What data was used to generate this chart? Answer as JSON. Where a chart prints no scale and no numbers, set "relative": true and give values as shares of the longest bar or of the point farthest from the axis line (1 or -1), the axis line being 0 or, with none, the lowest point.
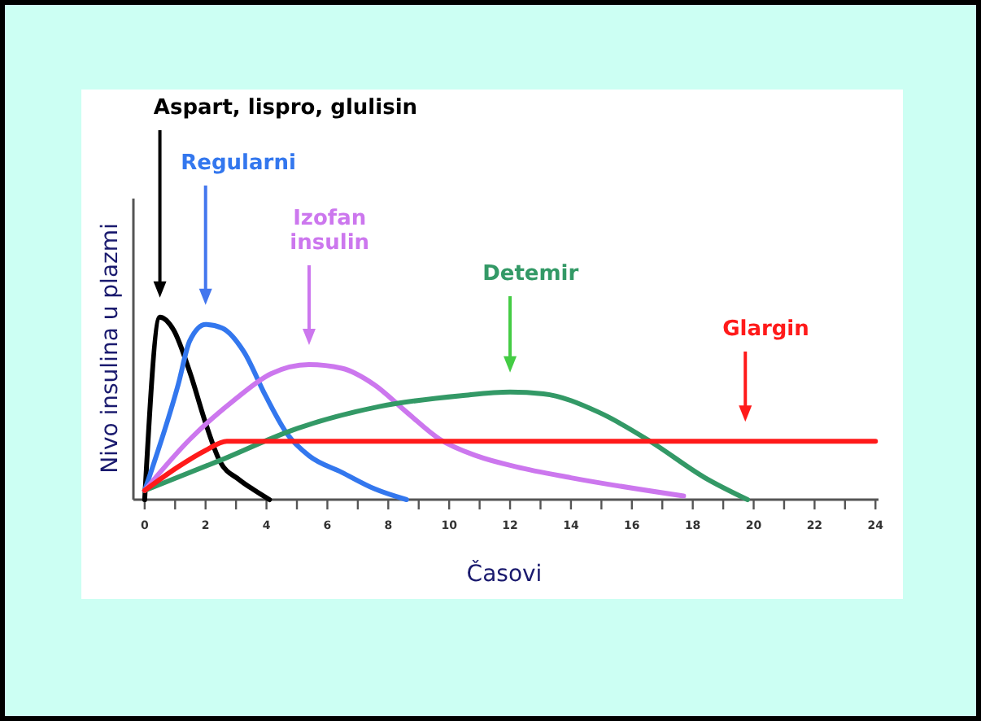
{
  "chart_data": {
    "type": "line",
    "relative": true,
    "xlabel": "Časovi",
    "ylabel": "Nivo insulina u plazmi",
    "xlim": [
      -0.37,
      24.1
    ],
    "xticks": [
      0,
      {
        "value": 1,
        "label": null
      },
      2,
      {
        "value": 3,
        "label": null
      },
      4,
      {
        "value": 5,
        "label": null
      },
      6,
      {
        "value": 7,
        "label": null
      },
      8,
      {
        "value": 9,
        "label": null
      },
      10,
      {
        "value": 11,
        "label": null
      },
      12,
      {
        "value": 13,
        "label": null
      },
      14,
      {
        "value": 15,
        "label": null
      },
      16,
      {
        "value": 17,
        "label": null
      },
      18,
      {
        "value": 19,
        "label": null
      },
      20,
      {
        "value": 21,
        "label": null
      },
      22,
      {
        "value": 23,
        "label": null
      },
      24
    ],
    "series": [
      {
        "name": "Aspart, lispro, glulisin",
        "color": "#000000",
        "x": [
          0,
          0.5,
          0.95,
          1.5,
          2.0,
          2.47,
          3.1,
          3.62,
          4.1
        ],
        "values": [
          0,
          1,
          0.93,
          0.69,
          0.42,
          0.21,
          0.11,
          0.05,
          0
        ]
      },
      {
        "name": "Regularni",
        "color": "#3377ee",
        "x": [
          0,
          1.1,
          1.48,
          2.0,
          2.55,
          3.26,
          3.97,
          4.68,
          5.4,
          6.47,
          7.54,
          8.6
        ],
        "values": [
          0.05,
          0.63,
          0.87,
          0.96,
          0.94,
          0.81,
          0.57,
          0.36,
          0.24,
          0.15,
          0.06,
          0
        ]
      },
      {
        "name": "Izofan\ninsulin",
        "color": "#cc77ee",
        "x": [
          0,
          1.48,
          2.9,
          4.15,
          5.4,
          6.47,
          7.54,
          8.6,
          9.7,
          10.9,
          12.2,
          14.0,
          17.7
        ],
        "values": [
          0.05,
          0.33,
          0.54,
          0.69,
          0.74,
          0.72,
          0.63,
          0.48,
          0.33,
          0.24,
          0.18,
          0.12,
          0.02
        ]
      },
      {
        "name": "Detemir",
        "color": "#339966",
        "x": [
          0,
          2.4,
          5.0,
          7.7,
          10.4,
          12,
          13.1,
          14.9,
          16.6,
          18.4,
          19.8
        ],
        "values": [
          0.05,
          0.21,
          0.39,
          0.51,
          0.57,
          0.59,
          0.58,
          0.48,
          0.32,
          0.12,
          0
        ]
      },
      {
        "name": "Glargin",
        "color": "#ff1a1a",
        "x": [
          0,
          1.1,
          2.0,
          2.7,
          24
        ],
        "values": [
          0.05,
          0.18,
          0.27,
          0.32,
          0.32
        ]
      }
    ],
    "marker": "none",
    "line_style": "solid"
  }
}
